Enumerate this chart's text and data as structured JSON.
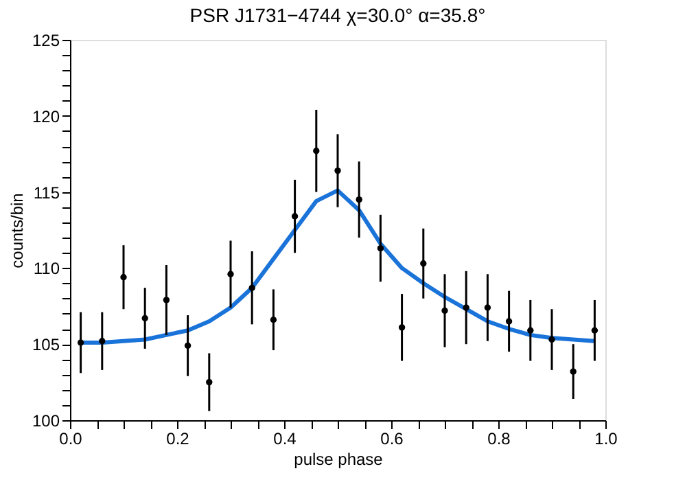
{
  "chart_data": {
    "type": "scatter",
    "title": "PSR J1731−4744   χ=30.0°  α=35.8°",
    "xlabel": "pulse phase",
    "ylabel": "counts/bin",
    "xlim": [
      0,
      1
    ],
    "ylim": [
      100,
      125
    ],
    "xticks": [
      {
        "value": 0,
        "label": "0.0"
      },
      {
        "value": 0.05,
        "label": null
      },
      {
        "value": 0.1,
        "label": null
      },
      {
        "value": 0.15,
        "label": null
      },
      0.2,
      {
        "value": 0.25,
        "label": null
      },
      {
        "value": 0.3,
        "label": null
      },
      {
        "value": 0.35,
        "label": null
      },
      0.4,
      {
        "value": 0.45,
        "label": null
      },
      {
        "value": 0.5,
        "label": null
      },
      {
        "value": 0.55,
        "label": null
      },
      0.6,
      {
        "value": 0.65,
        "label": null
      },
      {
        "value": 0.7,
        "label": null
      },
      {
        "value": 0.75,
        "label": null
      },
      0.8,
      {
        "value": 0.85,
        "label": null
      },
      {
        "value": 0.9,
        "label": null
      },
      {
        "value": 0.95,
        "label": null
      },
      {
        "value": 1,
        "label": "1.0"
      }
    ],
    "yticks": [
      100,
      {
        "value": 101,
        "label": null
      },
      {
        "value": 102,
        "label": null
      },
      {
        "value": 103,
        "label": null
      },
      {
        "value": 104,
        "label": null
      },
      105,
      {
        "value": 106,
        "label": null
      },
      {
        "value": 107,
        "label": null
      },
      {
        "value": 108,
        "label": null
      },
      {
        "value": 109,
        "label": null
      },
      110,
      {
        "value": 111,
        "label": null
      },
      {
        "value": 112,
        "label": null
      },
      {
        "value": 113,
        "label": null
      },
      {
        "value": 114,
        "label": null
      },
      115,
      {
        "value": 116,
        "label": null
      },
      {
        "value": 117,
        "label": null
      },
      {
        "value": 118,
        "label": null
      },
      {
        "value": 119,
        "label": null
      },
      120,
      {
        "value": 121,
        "label": null
      },
      {
        "value": 122,
        "label": null
      },
      {
        "value": 123,
        "label": null
      },
      {
        "value": 124,
        "label": null
      },
      125
    ],
    "grid": false,
    "x": [
      0.02,
      0.06,
      0.1,
      0.14,
      0.18,
      0.22,
      0.26,
      0.3,
      0.34,
      0.38,
      0.42,
      0.46,
      0.5,
      0.54,
      0.58,
      0.62,
      0.66,
      0.7,
      0.74,
      0.78,
      0.82,
      0.86,
      0.9,
      0.94,
      0.98
    ],
    "series": [
      {
        "color": "#000000",
        "marker": "circle",
        "values": [
          105.1,
          105.2,
          109.4,
          106.7,
          107.9,
          104.9,
          102.5,
          109.6,
          108.7,
          106.6,
          113.4,
          117.7,
          116.4,
          114.5,
          111.3,
          106.1,
          110.3,
          107.2,
          107.4,
          107.4,
          106.5,
          105.9,
          105.3,
          103.2,
          105.9
        ],
        "errors": [
          2.0,
          1.9,
          2.1,
          2.0,
          2.3,
          2.0,
          1.9,
          2.2,
          2.4,
          2.0,
          2.4,
          2.7,
          2.4,
          2.5,
          2.2,
          2.2,
          2.3,
          2.4,
          2.4,
          2.2,
          2.0,
          2.0,
          2.0,
          1.8,
          2.0
        ]
      },
      {
        "type": "line",
        "color": "#1a73d9",
        "marker": "none",
        "line_style": "solid",
        "values": [
          105.1,
          105.1,
          105.2,
          105.3,
          105.6,
          105.9,
          106.5,
          107.4,
          108.7,
          110.6,
          112.5,
          114.4,
          115.1,
          113.8,
          111.6,
          110.0,
          109.0,
          108.1,
          107.3,
          106.5,
          106.0,
          105.6,
          105.4,
          105.3,
          105.2
        ]
      }
    ]
  }
}
